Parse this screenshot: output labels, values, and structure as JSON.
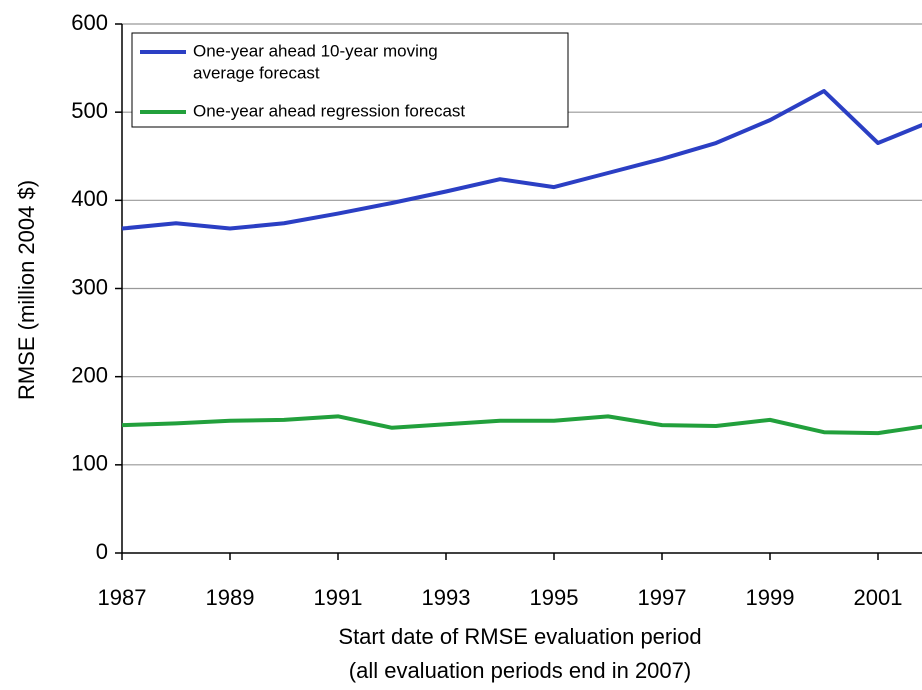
{
  "chart_data": {
    "type": "line",
    "x_label_lines": [
      "Start date of RMSE evaluation period",
      "(all evaluation periods end in 2007)"
    ],
    "y_label": "RMSE (million 2004 $)",
    "x": [
      1987,
      1988,
      1989,
      1990,
      1991,
      1992,
      1993,
      1994,
      1995,
      1996,
      1997,
      1998,
      1999,
      2000,
      2001,
      2002
    ],
    "series": [
      {
        "name_lines": [
          "One-year ahead 10-year moving",
          "average forecast"
        ],
        "color": "#2b3fc4",
        "values": [
          368,
          374,
          368,
          374,
          385,
          397,
          410,
          424,
          415,
          431,
          447,
          465,
          491,
          524,
          465,
          490
        ]
      },
      {
        "name_lines": [
          "One-year ahead regression forecast"
        ],
        "color": "#22a03c",
        "values": [
          145,
          147,
          150,
          151,
          155,
          142,
          146,
          150,
          150,
          155,
          145,
          144,
          151,
          137,
          136,
          145
        ]
      }
    ],
    "xlim": [
      1987,
      2002
    ],
    "xticks": [
      1987,
      1989,
      1991,
      1993,
      1995,
      1997,
      1999,
      2001
    ],
    "ylim": [
      0,
      600
    ],
    "yticks": [
      0,
      100,
      200,
      300,
      400,
      500,
      600
    ],
    "grid": true
  }
}
